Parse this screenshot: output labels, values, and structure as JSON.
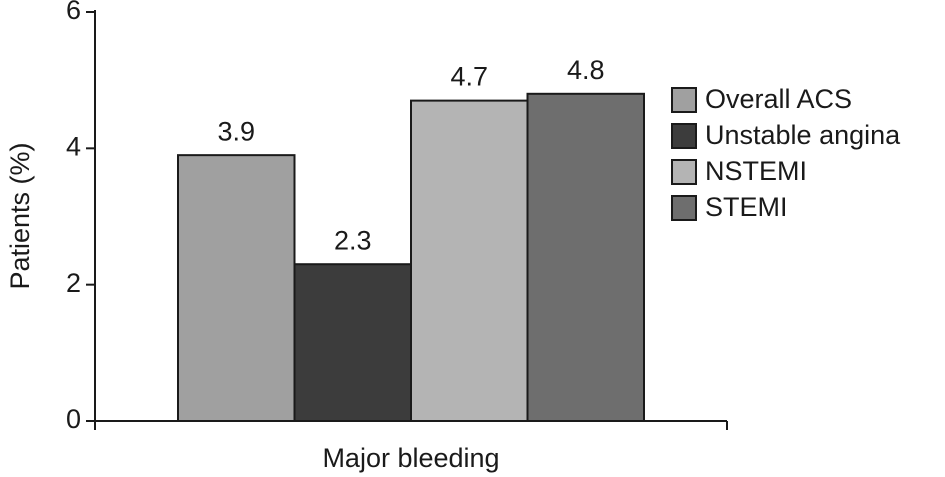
{
  "chart_data": {
    "type": "bar",
    "y_label": "Patients (%)",
    "categories": [
      "Major bleeding"
    ],
    "series": [
      {
        "name": "Overall ACS",
        "color": "#a0a0a0",
        "values": [
          3.9
        ]
      },
      {
        "name": "Unstable angina",
        "color": "#3c3c3c",
        "values": [
          2.3
        ]
      },
      {
        "name": "NSTEMI",
        "color": "#b4b4b4",
        "values": [
          4.7
        ]
      },
      {
        "name": "STEMI",
        "color": "#6e6e6e",
        "values": [
          4.8
        ]
      }
    ],
    "ylim": [
      0,
      6
    ],
    "yticks": [
      0,
      2,
      4,
      6
    ],
    "legend": "right"
  }
}
